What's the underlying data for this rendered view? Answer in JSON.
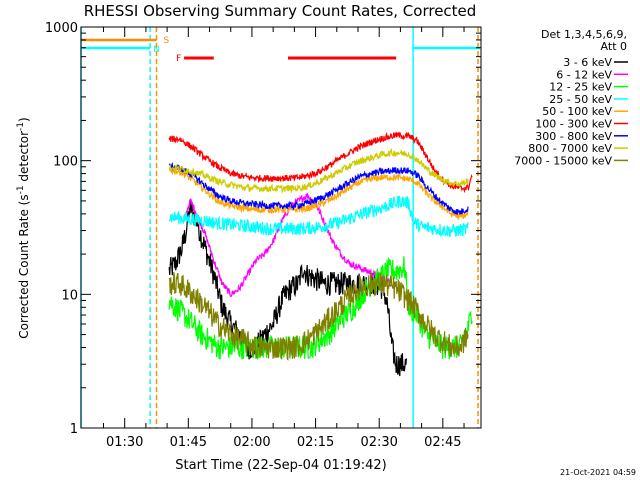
{
  "chart_data": {
    "type": "line",
    "title": "RHESSI Observing Summary Count Rates, Corrected",
    "xlabel": "Start Time (22-Sep-04 01:19:42)",
    "ylabel_parts": [
      "Corrected Count Rate (s",
      "-1",
      " detector",
      "-1",
      ")"
    ],
    "yscale": "log",
    "ylim": [
      1,
      1000
    ],
    "xlim_min": [
      79.7,
      174
    ],
    "x_unit": "minutes after 00:00 UT",
    "x_ticks": [
      {
        "t": 90,
        "label": "01:30"
      },
      {
        "t": 105,
        "label": "01:45"
      },
      {
        "t": 120,
        "label": "02:00"
      },
      {
        "t": 135,
        "label": "02:15"
      },
      {
        "t": 150,
        "label": "02:30"
      },
      {
        "t": 165,
        "label": "02:45"
      }
    ],
    "y_ticks": [
      {
        "v": 1,
        "label": "1"
      },
      {
        "v": 10,
        "label": "10"
      },
      {
        "v": 100,
        "label": "100"
      },
      {
        "v": 1000,
        "label": "1000"
      }
    ],
    "legend_header": [
      "Det 1,3,4,5,6,9,",
      "Att 0"
    ],
    "series": [
      {
        "name": "3 - 6 keV",
        "color": "#000000",
        "points": [
          [
            100.5,
            15
          ],
          [
            102,
            17
          ],
          [
            103.5,
            22
          ],
          [
            104.5,
            30
          ],
          [
            105.5,
            45
          ],
          [
            107,
            35
          ],
          [
            109,
            22
          ],
          [
            111,
            14
          ],
          [
            113,
            8
          ],
          [
            115,
            6
          ],
          [
            117,
            5
          ],
          [
            119,
            4
          ],
          [
            121,
            4
          ],
          [
            123,
            5
          ],
          [
            125,
            6
          ],
          [
            127,
            9
          ],
          [
            129,
            11
          ],
          [
            131,
            12
          ],
          [
            132,
            16
          ],
          [
            133,
            14
          ],
          [
            135,
            13
          ],
          [
            137,
            12
          ],
          [
            139,
            12
          ],
          [
            141,
            12
          ],
          [
            143,
            12
          ],
          [
            145,
            12
          ],
          [
            147,
            12
          ],
          [
            149,
            12
          ],
          [
            151,
            11
          ],
          [
            152,
            8
          ],
          [
            153,
            4
          ],
          [
            154,
            3
          ],
          [
            155,
            3
          ],
          [
            156,
            3
          ],
          [
            156.5,
            3
          ]
        ]
      },
      {
        "name": "6 - 12 keV",
        "color": "#ff00ff",
        "points": [
          [
            104,
            36
          ],
          [
            105.5,
            50
          ],
          [
            107,
            40
          ],
          [
            109,
            28
          ],
          [
            111,
            18
          ],
          [
            113,
            12
          ],
          [
            115,
            10
          ],
          [
            117,
            11
          ],
          [
            119,
            14
          ],
          [
            121,
            18
          ],
          [
            123,
            20
          ],
          [
            125,
            25
          ],
          [
            127,
            35
          ],
          [
            129,
            45
          ],
          [
            131,
            50
          ],
          [
            133,
            55
          ],
          [
            135,
            48
          ],
          [
            137,
            35
          ],
          [
            139,
            25
          ],
          [
            141,
            20
          ],
          [
            143,
            17
          ],
          [
            145,
            16
          ],
          [
            147,
            15
          ],
          [
            149,
            14
          ],
          [
            151,
            13
          ],
          [
            153,
            12
          ]
        ]
      },
      {
        "name": "12 - 25 keV",
        "color": "#00ff00",
        "points": [
          [
            100.5,
            9
          ],
          [
            102,
            8
          ],
          [
            104,
            7
          ],
          [
            106,
            6
          ],
          [
            108,
            5
          ],
          [
            110,
            4.5
          ],
          [
            112,
            4
          ],
          [
            114,
            4
          ],
          [
            116,
            4
          ],
          [
            118,
            4
          ],
          [
            120,
            4
          ],
          [
            122,
            4
          ],
          [
            124,
            4
          ],
          [
            126,
            4
          ],
          [
            128,
            4
          ],
          [
            130,
            4
          ],
          [
            132,
            4
          ],
          [
            134,
            4
          ],
          [
            136,
            4.5
          ],
          [
            138,
            5
          ],
          [
            140,
            6
          ],
          [
            142,
            7
          ],
          [
            144,
            8
          ],
          [
            146,
            10
          ],
          [
            148,
            12
          ],
          [
            150,
            13
          ],
          [
            152,
            15
          ],
          [
            154,
            15
          ],
          [
            156,
            16
          ],
          [
            157,
            8
          ],
          [
            159,
            7
          ],
          [
            161,
            5
          ],
          [
            163,
            4.5
          ],
          [
            165,
            4
          ],
          [
            167,
            4
          ],
          [
            169,
            4
          ],
          [
            171,
            5.5
          ],
          [
            172,
            8
          ]
        ]
      },
      {
        "name": "25 - 50 keV",
        "color": "#00ffff",
        "points": [
          [
            100.5,
            38
          ],
          [
            104,
            37
          ],
          [
            108,
            36
          ],
          [
            112,
            34
          ],
          [
            116,
            33
          ],
          [
            120,
            32
          ],
          [
            124,
            31
          ],
          [
            128,
            31
          ],
          [
            132,
            31
          ],
          [
            136,
            32
          ],
          [
            140,
            34
          ],
          [
            144,
            38
          ],
          [
            148,
            42
          ],
          [
            152,
            46
          ],
          [
            155,
            50
          ],
          [
            157,
            48
          ],
          [
            158,
            35
          ],
          [
            160,
            32
          ],
          [
            163,
            31
          ],
          [
            166,
            30
          ],
          [
            169,
            30
          ],
          [
            171,
            31
          ]
        ]
      },
      {
        "name": "50 - 100 keV",
        "color": "#ffa500",
        "points": [
          [
            100.5,
            85
          ],
          [
            103,
            83
          ],
          [
            106,
            72
          ],
          [
            109,
            60
          ],
          [
            112,
            50
          ],
          [
            115,
            46
          ],
          [
            118,
            44
          ],
          [
            121,
            43
          ],
          [
            124,
            43
          ],
          [
            127,
            43
          ],
          [
            130,
            43
          ],
          [
            133,
            44
          ],
          [
            136,
            47
          ],
          [
            139,
            52
          ],
          [
            142,
            60
          ],
          [
            145,
            68
          ],
          [
            148,
            73
          ],
          [
            151,
            75
          ],
          [
            154,
            75
          ],
          [
            157,
            73
          ],
          [
            159,
            68
          ],
          [
            161,
            58
          ],
          [
            163,
            50
          ],
          [
            165,
            45
          ],
          [
            167,
            40
          ],
          [
            169,
            38
          ],
          [
            171,
            40
          ]
        ]
      },
      {
        "name": "100 - 300 keV",
        "color": "#ff0000",
        "points": [
          [
            100.5,
            145
          ],
          [
            103,
            145
          ],
          [
            106,
            125
          ],
          [
            109,
            105
          ],
          [
            112,
            90
          ],
          [
            115,
            80
          ],
          [
            118,
            76
          ],
          [
            121,
            74
          ],
          [
            124,
            74
          ],
          [
            127,
            74
          ],
          [
            130,
            74
          ],
          [
            133,
            77
          ],
          [
            136,
            83
          ],
          [
            139,
            95
          ],
          [
            142,
            110
          ],
          [
            145,
            125
          ],
          [
            148,
            138
          ],
          [
            151,
            148
          ],
          [
            154,
            155
          ],
          [
            157,
            152
          ],
          [
            159,
            140
          ],
          [
            161,
            110
          ],
          [
            163,
            85
          ],
          [
            165,
            72
          ],
          [
            167,
            65
          ],
          [
            169,
            62
          ],
          [
            171,
            63
          ],
          [
            172,
            80
          ]
        ]
      },
      {
        "name": "300 - 800 keV",
        "color": "#0000ff",
        "points": [
          [
            100.5,
            90
          ],
          [
            103,
            88
          ],
          [
            106,
            78
          ],
          [
            109,
            65
          ],
          [
            112,
            55
          ],
          [
            115,
            50
          ],
          [
            118,
            48
          ],
          [
            121,
            47
          ],
          [
            124,
            46
          ],
          [
            127,
            46
          ],
          [
            130,
            46
          ],
          [
            133,
            48
          ],
          [
            136,
            52
          ],
          [
            139,
            58
          ],
          [
            142,
            66
          ],
          [
            145,
            75
          ],
          [
            148,
            80
          ],
          [
            151,
            83
          ],
          [
            154,
            85
          ],
          [
            157,
            84
          ],
          [
            159,
            78
          ],
          [
            161,
            65
          ],
          [
            163,
            55
          ],
          [
            165,
            48
          ],
          [
            167,
            43
          ],
          [
            169,
            41
          ],
          [
            171,
            44
          ]
        ]
      },
      {
        "name": "800 - 7000 keV",
        "color": "#cccc00",
        "points": [
          [
            100.5,
            88
          ],
          [
            103,
            87
          ],
          [
            106,
            83
          ],
          [
            109,
            77
          ],
          [
            112,
            70
          ],
          [
            115,
            66
          ],
          [
            118,
            63
          ],
          [
            121,
            62
          ],
          [
            124,
            62
          ],
          [
            127,
            62
          ],
          [
            130,
            62
          ],
          [
            133,
            64
          ],
          [
            136,
            70
          ],
          [
            139,
            78
          ],
          [
            142,
            88
          ],
          [
            145,
            98
          ],
          [
            148,
            105
          ],
          [
            151,
            112
          ],
          [
            154,
            115
          ],
          [
            157,
            112
          ],
          [
            159,
            102
          ],
          [
            161,
            88
          ],
          [
            163,
            78
          ],
          [
            165,
            72
          ],
          [
            167,
            68
          ],
          [
            169,
            67
          ],
          [
            171,
            70
          ]
        ]
      },
      {
        "name": "7000 - 15000 keV",
        "color": "#808000",
        "points": [
          [
            100.5,
            12
          ],
          [
            103,
            12
          ],
          [
            106,
            10
          ],
          [
            109,
            8
          ],
          [
            112,
            6
          ],
          [
            115,
            5
          ],
          [
            118,
            4.5
          ],
          [
            121,
            4
          ],
          [
            124,
            4
          ],
          [
            127,
            4
          ],
          [
            130,
            4
          ],
          [
            133,
            4.5
          ],
          [
            136,
            5.5
          ],
          [
            139,
            7
          ],
          [
            142,
            9
          ],
          [
            145,
            11
          ],
          [
            148,
            12
          ],
          [
            151,
            12
          ],
          [
            154,
            11
          ],
          [
            157,
            9
          ],
          [
            159,
            7.5
          ],
          [
            161,
            6
          ],
          [
            163,
            5
          ],
          [
            165,
            4.5
          ],
          [
            167,
            4
          ],
          [
            169,
            4
          ],
          [
            171,
            5
          ]
        ]
      }
    ],
    "flags": [
      {
        "label": "S",
        "color": "#ff8c00",
        "segments": [
          [
            79.7,
            97.5
          ]
        ],
        "level": "top"
      },
      {
        "label": "N",
        "color": "#00ffff",
        "segments": [
          [
            79.7,
            96.0
          ],
          [
            158.0,
            174
          ]
        ],
        "level": "second"
      },
      {
        "label": "F",
        "color": "#ff0000",
        "segments": [
          [
            104.0,
            111.0
          ],
          [
            128.5,
            154.0
          ]
        ],
        "level": "third"
      }
    ],
    "vertical_lines": [
      {
        "t": 79.7,
        "color": "#00ffff",
        "style": "solid"
      },
      {
        "t": 96.0,
        "color": "#00ffff",
        "style": "dashed"
      },
      {
        "t": 97.5,
        "color": "#ff8c00",
        "style": "dashed"
      },
      {
        "t": 158.0,
        "color": "#00ffff",
        "style": "solid"
      },
      {
        "t": 173.3,
        "color": "#ff8c00",
        "style": "dashed"
      }
    ],
    "grid": false,
    "legend_position": "right"
  },
  "footer_timestamp": "21-Oct-2021 04:59"
}
